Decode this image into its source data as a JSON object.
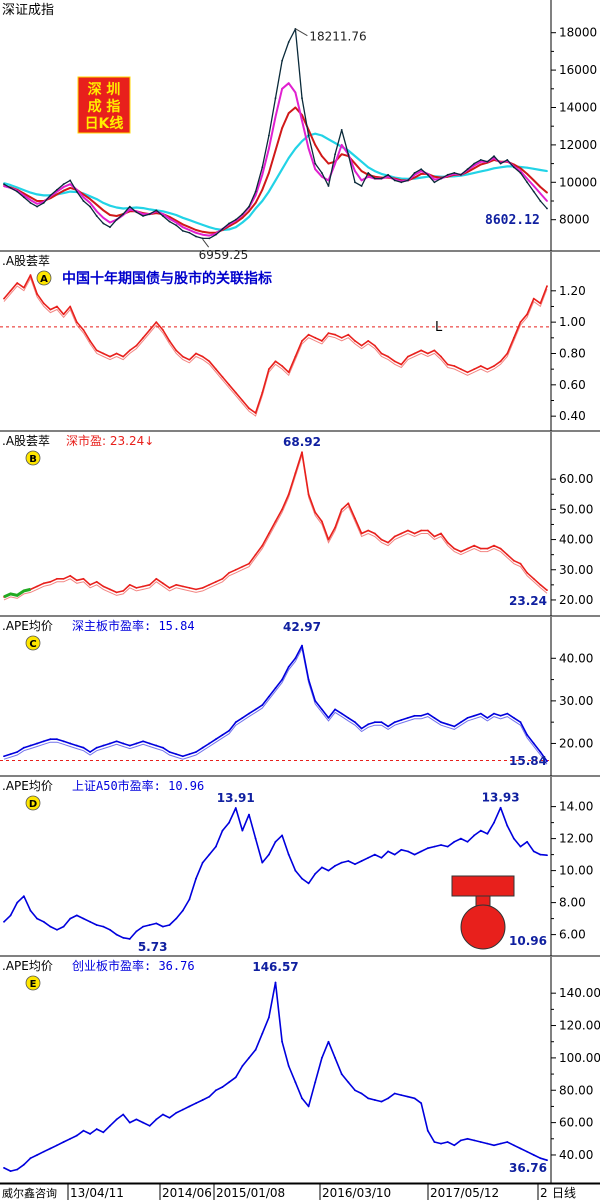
{
  "colors": {
    "red": "#e8201c",
    "blue": "#0000dd",
    "cyan": "#22d3e6",
    "magenta": "#e020d0",
    "darkred": "#d01818",
    "navy": "#1020a0",
    "green": "#22aa22",
    "grid": "#999999"
  },
  "x_axis": {
    "left_label": "威尔鑫咨询",
    "dates": [
      "13/04/11",
      "2014/06",
      "2015/01/08",
      "2016/03/10",
      "2017/05/12",
      "2"
    ],
    "period_label": "日线"
  },
  "badge": {
    "lines": [
      "深 圳",
      "成 指",
      "日K线"
    ]
  },
  "thumb_icon": "thumbs-up-icon",
  "chart_data": [
    {
      "id": "index",
      "type": "line",
      "title": "深证成指",
      "ylim": [
        6700,
        19000
      ],
      "yticks": [
        8000,
        10000,
        12000,
        14000,
        16000,
        18000
      ],
      "ytick_labels": [
        "8000",
        "10000",
        "12000",
        "14000",
        "16000",
        "18000"
      ],
      "annotations": {
        "max": "18211.76",
        "min": "6959.25",
        "last": "8602.12"
      },
      "series": [
        {
          "key": "index",
          "style": "dark",
          "values": [
            9900,
            9700,
            9500,
            9200,
            8900,
            8700,
            8900,
            9300,
            9600,
            9900,
            10100,
            9500,
            9000,
            8700,
            8200,
            7800,
            7600,
            8000,
            8300,
            8700,
            8400,
            8200,
            8300,
            8500,
            8200,
            7900,
            7700,
            7400,
            7300,
            7100,
            7000,
            7000,
            7200,
            7500,
            7800,
            8000,
            8300,
            8700,
            9500,
            10800,
            12500,
            14500,
            16500,
            17500,
            18200,
            14500,
            12500,
            11000,
            10500,
            9800,
            11500,
            12800,
            11500,
            10000,
            9800,
            10500,
            10200,
            10200,
            10400,
            10100,
            10000,
            10100,
            10500,
            10700,
            10400,
            10000,
            10200,
            10400,
            10500,
            10400,
            10700,
            11000,
            11200,
            11100,
            11400,
            11000,
            11200,
            10800,
            10500,
            10000,
            9500,
            9000,
            8600
          ]
        },
        {
          "key": "ma_short",
          "style": "magenta",
          "values": [
            9800,
            9700,
            9550,
            9300,
            9050,
            8850,
            8950,
            9250,
            9500,
            9750,
            9900,
            9600,
            9200,
            8900,
            8450,
            8100,
            7850,
            8000,
            8250,
            8550,
            8450,
            8300,
            8300,
            8450,
            8300,
            8050,
            7850,
            7600,
            7450,
            7300,
            7200,
            7150,
            7250,
            7500,
            7750,
            7950,
            8250,
            8650,
            9300,
            10400,
            11800,
            13500,
            15000,
            15300,
            14800,
            13300,
            11800,
            10700,
            10300,
            10100,
            11000,
            12000,
            11500,
            10600,
            10100,
            10300,
            10200,
            10200,
            10300,
            10150,
            10050,
            10100,
            10400,
            10600,
            10450,
            10150,
            10200,
            10350,
            10450,
            10400,
            10650,
            10900,
            11100,
            11100,
            11300,
            11050,
            11150,
            10850,
            10600,
            10200,
            9800,
            9400,
            9000
          ]
        },
        {
          "key": "ma_mid",
          "style": "darkred",
          "values": [
            9800,
            9720,
            9600,
            9400,
            9200,
            9000,
            9000,
            9150,
            9350,
            9550,
            9700,
            9600,
            9350,
            9100,
            8800,
            8500,
            8250,
            8200,
            8300,
            8450,
            8450,
            8350,
            8300,
            8350,
            8300,
            8150,
            7950,
            7750,
            7600,
            7450,
            7350,
            7300,
            7300,
            7450,
            7650,
            7850,
            8100,
            8450,
            8900,
            9600,
            10500,
            11700,
            12900,
            13700,
            14000,
            13600,
            12800,
            12000,
            11400,
            11000,
            11100,
            11500,
            11400,
            11000,
            10600,
            10400,
            10300,
            10250,
            10250,
            10200,
            10100,
            10100,
            10250,
            10450,
            10450,
            10300,
            10250,
            10300,
            10400,
            10400,
            10550,
            10750,
            10950,
            11050,
            11200,
            11100,
            11100,
            10950,
            10750,
            10450,
            10100,
            9750,
            9450
          ]
        },
        {
          "key": "ma_long",
          "style": "cyan",
          "values": [
            9950,
            9850,
            9720,
            9580,
            9450,
            9350,
            9300,
            9300,
            9350,
            9420,
            9500,
            9480,
            9400,
            9250,
            9100,
            8900,
            8750,
            8650,
            8600,
            8620,
            8650,
            8620,
            8550,
            8500,
            8450,
            8350,
            8250,
            8100,
            7980,
            7850,
            7720,
            7600,
            7500,
            7450,
            7480,
            7600,
            7850,
            8150,
            8600,
            9000,
            9500,
            10100,
            10700,
            11300,
            11800,
            12200,
            12500,
            12600,
            12500,
            12300,
            12100,
            11900,
            11700,
            11400,
            11100,
            10800,
            10600,
            10450,
            10350,
            10250,
            10200,
            10180,
            10200,
            10250,
            10300,
            10320,
            10300,
            10300,
            10320,
            10350,
            10420,
            10500,
            10580,
            10650,
            10750,
            10800,
            10850,
            10850,
            10820,
            10780,
            10720,
            10660,
            10600
          ]
        }
      ]
    },
    {
      "id": "A",
      "type": "line",
      "title": "股荟萃",
      "letter": "A",
      "annotation": "中国十年期国债与股市的关联指标",
      "ylim": [
        0.35,
        1.32
      ],
      "yticks": [
        0.4,
        0.6,
        0.8,
        1.0,
        1.2
      ],
      "ytick_labels": [
        "0.40",
        "0.60",
        "0.80",
        "1.00",
        "1.20"
      ],
      "reference_line": {
        "value": 0.97,
        "label": "L"
      },
      "series": [
        {
          "values": [
            1.15,
            1.2,
            1.25,
            1.22,
            1.3,
            1.18,
            1.12,
            1.08,
            1.1,
            1.05,
            1.1,
            1.0,
            0.95,
            0.88,
            0.82,
            0.8,
            0.78,
            0.8,
            0.78,
            0.82,
            0.85,
            0.9,
            0.95,
            1.0,
            0.95,
            0.88,
            0.82,
            0.78,
            0.76,
            0.8,
            0.78,
            0.75,
            0.7,
            0.65,
            0.6,
            0.55,
            0.5,
            0.45,
            0.42,
            0.55,
            0.7,
            0.75,
            0.72,
            0.68,
            0.78,
            0.88,
            0.92,
            0.9,
            0.88,
            0.93,
            0.92,
            0.9,
            0.92,
            0.88,
            0.85,
            0.88,
            0.85,
            0.8,
            0.78,
            0.75,
            0.73,
            0.78,
            0.8,
            0.82,
            0.8,
            0.82,
            0.78,
            0.73,
            0.72,
            0.7,
            0.68,
            0.7,
            0.72,
            0.7,
            0.72,
            0.75,
            0.8,
            0.9,
            1.0,
            1.05,
            1.15,
            1.12,
            1.23
          ]
        }
      ]
    },
    {
      "id": "B",
      "type": "line",
      "title": "股荟萃",
      "letter": "B",
      "label": "深市盈: 23.24↓",
      "ylim": [
        17,
        69
      ],
      "yticks": [
        20,
        30,
        40,
        50,
        60
      ],
      "ytick_labels": [
        "20.00",
        "30.00",
        "40.00",
        "50.00",
        "60.00"
      ],
      "annotations": {
        "max": "68.92",
        "last": "23.24"
      },
      "series": [
        {
          "values": [
            21,
            22,
            21.5,
            23,
            23.5,
            24.5,
            25.5,
            26,
            27,
            27,
            28,
            26.5,
            27,
            25,
            26,
            24.5,
            23.5,
            22.5,
            23,
            25,
            24,
            24.5,
            25,
            27,
            25.5,
            24,
            25,
            24.5,
            24,
            23.5,
            24,
            25,
            26,
            27,
            29,
            30,
            31,
            32,
            35,
            38,
            42,
            46,
            50,
            55,
            62,
            68.92,
            55,
            49,
            46,
            40,
            44,
            50,
            52,
            47,
            42,
            43,
            42,
            40,
            39,
            41,
            42,
            43,
            42,
            43,
            43,
            41,
            42,
            39,
            37,
            36,
            37,
            38,
            37,
            37,
            38,
            37,
            35,
            33,
            32,
            29,
            27,
            25,
            23.24
          ]
        }
      ],
      "highlight_segment": {
        "from": 0,
        "to": 4
      }
    },
    {
      "id": "C",
      "type": "line",
      "title": "PE均价",
      "letter": "C",
      "label": "深主板市盈率: 15.84",
      "ylim": [
        14,
        45
      ],
      "yticks": [
        20,
        30,
        40
      ],
      "ytick_labels": [
        "20.00",
        "30.00",
        "40.00"
      ],
      "reference_line": {
        "value": 16
      },
      "annotations": {
        "max": "42.97",
        "last": "15.84"
      },
      "series": [
        {
          "values": [
            17,
            17.5,
            18,
            19,
            19.5,
            20,
            20.5,
            21,
            21,
            20.5,
            20,
            19.5,
            19,
            18,
            19,
            19.5,
            20,
            20.5,
            20,
            19.5,
            20,
            20.5,
            20,
            19.5,
            19,
            18,
            17.5,
            17,
            17.5,
            18,
            19,
            20,
            21,
            22,
            23,
            25,
            26,
            27,
            28,
            29,
            31,
            33,
            35,
            38,
            40,
            42.97,
            35,
            30,
            28,
            26,
            28,
            27,
            26,
            25,
            23.5,
            24.5,
            25,
            25,
            24,
            25,
            25.5,
            26,
            26.5,
            26.5,
            27,
            26,
            25,
            24.5,
            24,
            25,
            26,
            26.5,
            27,
            26,
            27,
            26.5,
            27,
            26,
            25,
            22,
            20,
            18,
            15.84
          ]
        }
      ]
    },
    {
      "id": "D",
      "type": "line",
      "title": "PE均价",
      "letter": "D",
      "label": "上证A50市盈率: 10.96",
      "ylim": [
        5.1,
        14.6
      ],
      "yticks": [
        6,
        8,
        10,
        12,
        14
      ],
      "ytick_labels": [
        "6.00",
        "8.00",
        "10.00",
        "12.00",
        "14.00"
      ],
      "annotations": {
        "max1": "13.91",
        "min": "5.73",
        "max2": "13.93",
        "last": "10.96"
      },
      "series": [
        {
          "values": [
            6.8,
            7.2,
            8.0,
            8.4,
            7.5,
            7.0,
            6.8,
            6.5,
            6.3,
            6.5,
            7.0,
            7.2,
            7.0,
            6.8,
            6.6,
            6.5,
            6.3,
            6.0,
            5.8,
            5.73,
            6.2,
            6.5,
            6.6,
            6.7,
            6.5,
            6.6,
            7.0,
            7.5,
            8.2,
            9.5,
            10.5,
            11.0,
            11.5,
            12.5,
            13.0,
            13.91,
            12.5,
            13.5,
            12.0,
            10.5,
            11.0,
            11.8,
            12.2,
            11.0,
            10.0,
            9.5,
            9.2,
            9.8,
            10.2,
            10.0,
            10.3,
            10.5,
            10.6,
            10.4,
            10.6,
            10.8,
            11.0,
            10.8,
            11.2,
            11.0,
            11.3,
            11.2,
            11.0,
            11.2,
            11.4,
            11.5,
            11.6,
            11.5,
            11.8,
            12.0,
            11.8,
            12.2,
            12.5,
            12.3,
            13.0,
            13.93,
            12.8,
            12.0,
            11.5,
            11.8,
            11.2,
            11.0,
            10.96
          ]
        }
      ]
    },
    {
      "id": "E",
      "type": "line",
      "title": "PE均价",
      "letter": "E",
      "label": "创业板市盈率: 36.76",
      "ylim": [
        27,
        150
      ],
      "yticks": [
        40,
        60,
        80,
        100,
        120,
        140
      ],
      "ytick_labels": [
        "40.00",
        "60.00",
        "80.00",
        "100.00",
        "120.00",
        "140.00"
      ],
      "annotations": {
        "max": "146.57",
        "last": "36.76"
      },
      "series": [
        {
          "values": [
            32,
            30,
            31,
            34,
            38,
            40,
            42,
            44,
            46,
            48,
            50,
            52,
            55,
            53,
            56,
            54,
            58,
            62,
            65,
            60,
            62,
            60,
            58,
            62,
            65,
            63,
            66,
            68,
            70,
            72,
            74,
            76,
            80,
            82,
            85,
            88,
            95,
            100,
            105,
            115,
            125,
            146.57,
            110,
            95,
            85,
            75,
            70,
            85,
            100,
            110,
            100,
            90,
            85,
            80,
            78,
            75,
            74,
            73,
            75,
            78,
            77,
            76,
            75,
            72,
            55,
            48,
            47,
            48,
            46,
            49,
            50,
            49,
            48,
            47,
            46,
            47,
            48,
            46,
            44,
            42,
            40,
            38,
            36.76
          ]
        }
      ]
    }
  ]
}
